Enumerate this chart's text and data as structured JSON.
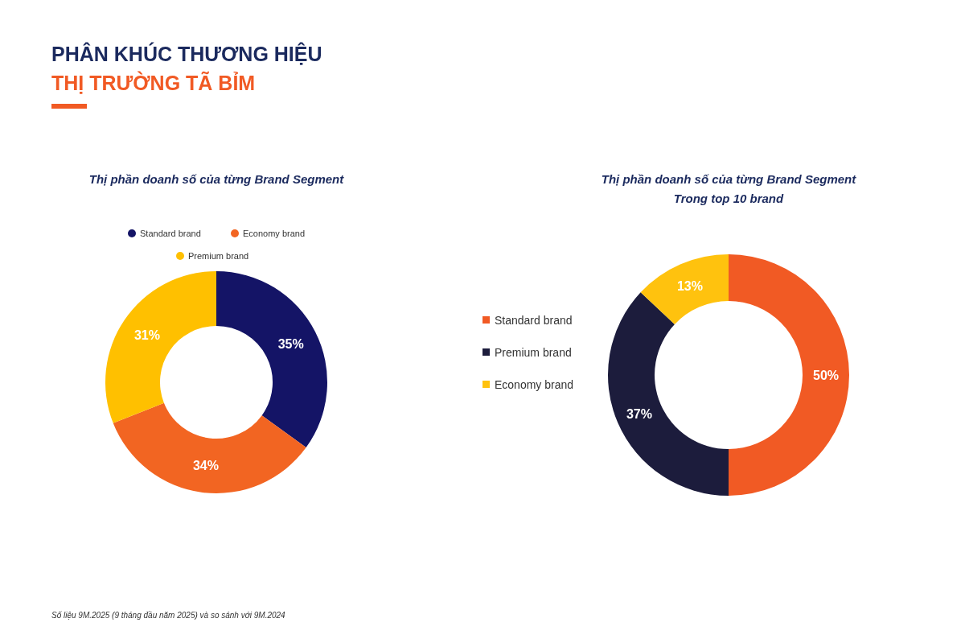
{
  "chart_data": [
    {
      "type": "other",
      "title": "PHÂN KHÚC THƯƠNG HIỆU",
      "subtitle": "THỊ TRƯỜNG TÃ BỈM",
      "annotations": [
        "Số liệu 9M.2025 (9 tháng đầu năm 2025) và so sánh với 9M.2024"
      ]
    },
    {
      "type": "donut",
      "title": "Thị phần doanh số của từng Brand Segment",
      "categories": [
        "Standard brand",
        "Economy brand",
        "Premium brand"
      ],
      "values": [
        35,
        34,
        31
      ],
      "colors": [
        "#141466",
        "#f26522",
        "#ffc000"
      ],
      "value_labels": [
        "35%",
        "34%",
        "31%"
      ],
      "legend": "top"
    },
    {
      "type": "donut",
      "title": "Thị phần doanh số của từng Brand Segment\nTrong top 10 brand",
      "categories": [
        "Standard brand",
        "Premium brand",
        "Economy brand"
      ],
      "values": [
        50,
        37,
        13
      ],
      "colors": [
        "#f15a24",
        "#1c1c3c",
        "#ffc20e"
      ],
      "value_labels": [
        "50%",
        "37%",
        "13%"
      ],
      "legend": "left"
    }
  ]
}
